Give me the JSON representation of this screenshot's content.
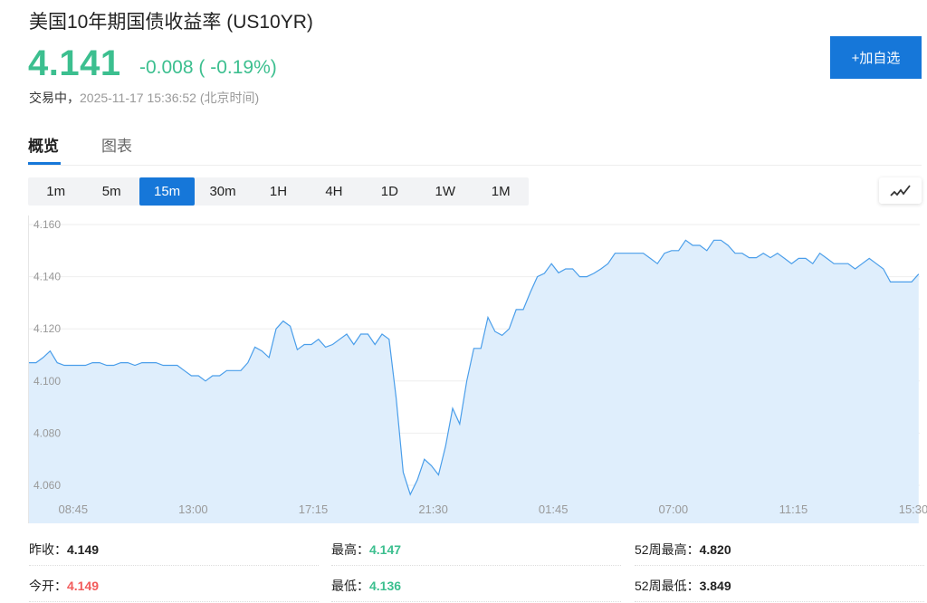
{
  "header": {
    "title": "美国10年期国债收益率",
    "symbol": "(US10YR)",
    "price": "4.141",
    "change": "-0.008",
    "change_pct": "( -0.19%)",
    "status_label": "交易中，",
    "timestamp": "2025-11-17 15:36:52",
    "timezone": "(北京时间)",
    "add_watchlist": "+加自选"
  },
  "colors": {
    "up": "#3cbf8f",
    "down": "#f25c5c",
    "accent": "#1677d9",
    "line": "#4a9eea",
    "fill": "#dfeefc"
  },
  "tabs": [
    {
      "label": "概览",
      "active": true
    },
    {
      "label": "图表",
      "active": false
    }
  ],
  "timeframes": [
    {
      "label": "1m"
    },
    {
      "label": "5m"
    },
    {
      "label": "15m",
      "active": true
    },
    {
      "label": "30m"
    },
    {
      "label": "1H"
    },
    {
      "label": "4H"
    },
    {
      "label": "1D"
    },
    {
      "label": "1W"
    },
    {
      "label": "1M"
    }
  ],
  "chart_type_icon": "line-chart-icon",
  "chart_data": {
    "type": "area",
    "ylim": [
      4.053,
      4.163
    ],
    "yticks": [
      "4.160",
      "4.140",
      "4.120",
      "4.100",
      "4.080",
      "4.060"
    ],
    "xtick_labels": [
      "08:45",
      "13:00",
      "17:15",
      "21:30",
      "01:45",
      "07:00",
      "11:15",
      "15:30"
    ],
    "grid": true,
    "values": [
      4.107,
      4.107,
      4.109,
      4.1115,
      4.107,
      4.106,
      4.106,
      4.106,
      4.106,
      4.107,
      4.107,
      4.106,
      4.106,
      4.107,
      4.107,
      4.106,
      4.107,
      4.107,
      4.107,
      4.106,
      4.106,
      4.106,
      4.104,
      4.102,
      4.102,
      4.1,
      4.102,
      4.102,
      4.104,
      4.104,
      4.104,
      4.107,
      4.113,
      4.1115,
      4.109,
      4.12,
      4.123,
      4.121,
      4.112,
      4.114,
      4.114,
      4.116,
      4.113,
      4.114,
      4.116,
      4.118,
      4.114,
      4.118,
      4.118,
      4.114,
      4.118,
      4.116,
      4.0935,
      4.065,
      4.0565,
      4.062,
      4.07,
      4.0675,
      4.064,
      4.075,
      4.0895,
      4.0835,
      4.1,
      4.1125,
      4.1125,
      4.1244,
      4.119,
      4.1175,
      4.12,
      4.1274,
      4.1274,
      4.134,
      4.14,
      4.1413,
      4.145,
      4.1415,
      4.143,
      4.143,
      4.14,
      4.14,
      4.1413,
      4.143,
      4.145,
      4.149,
      4.149,
      4.149,
      4.149,
      4.149,
      4.147,
      4.145,
      4.149,
      4.15,
      4.15,
      4.154,
      4.152,
      4.152,
      4.15,
      4.154,
      4.154,
      4.152,
      4.149,
      4.149,
      4.1473,
      4.1473,
      4.149,
      4.1473,
      4.149,
      4.147,
      4.145,
      4.147,
      4.147,
      4.145,
      4.149,
      4.147,
      4.145,
      4.145,
      4.145,
      4.143,
      4.145,
      4.147,
      4.145,
      4.143,
      4.138,
      4.138,
      4.138,
      4.138,
      4.141
    ]
  },
  "stats": [
    {
      "label": "昨收：",
      "value": "4.149",
      "color": "#222"
    },
    {
      "label": "最高：",
      "value": "4.147",
      "color": "#3cbf8f"
    },
    {
      "label": "52周最高：",
      "value": "4.820",
      "color": "#222"
    },
    {
      "label": "今开：",
      "value": "4.149",
      "color": "#f25c5c"
    },
    {
      "label": "最低：",
      "value": "4.136",
      "color": "#3cbf8f"
    },
    {
      "label": "52周最低：",
      "value": "3.849",
      "color": "#222"
    }
  ]
}
